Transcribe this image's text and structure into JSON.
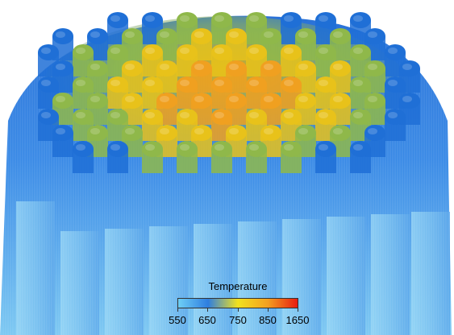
{
  "image": {
    "subject": "3D temperature field of a bundle of cylindrical rods",
    "palette": {
      "sky": "#8fd3f5",
      "blue": "#1f6fd6",
      "deep_blue": "#1a56c4",
      "green": "#8fb84a",
      "yellow": "#e8c21a",
      "orange": "#f0a020",
      "red": "#e02010"
    }
  },
  "legend": {
    "title": "Temperature",
    "ticks": [
      "550",
      "650",
      "750",
      "850",
      "1650"
    ],
    "gradient": [
      "#6ecff6",
      "#2e7ee0",
      "#f2e21e",
      "#f4a020",
      "#e81c10"
    ]
  }
}
